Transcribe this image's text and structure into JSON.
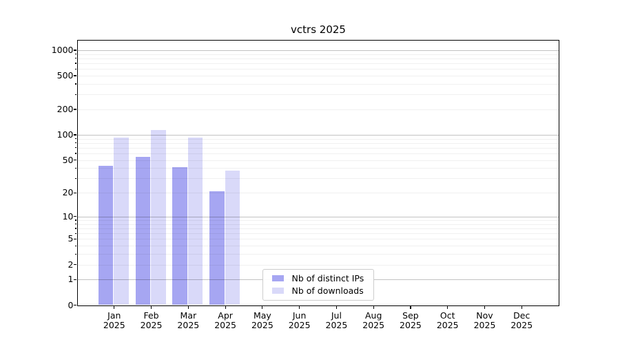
{
  "chart_data": {
    "type": "bar",
    "title": "vctrs 2025",
    "x_categories": [
      "Jan",
      "Feb",
      "Mar",
      "Apr",
      "May",
      "Jun",
      "Jul",
      "Aug",
      "Sep",
      "Oct",
      "Nov",
      "Dec"
    ],
    "x_year": "2025",
    "series": [
      {
        "name": "Nb of distinct IPs",
        "color": "#a6a6f2",
        "values": [
          43,
          55,
          41,
          21,
          null,
          null,
          null,
          null,
          null,
          null,
          null,
          null
        ]
      },
      {
        "name": "Nb of downloads",
        "color": "#d9d9f9",
        "values": [
          92,
          113,
          93,
          37,
          null,
          null,
          null,
          null,
          null,
          null,
          null,
          null
        ]
      }
    ],
    "y_scale": "log1p",
    "ylim": [
      0,
      1300
    ],
    "y_tick_labels": [
      "1000",
      "500",
      "200",
      "100",
      "50",
      "20",
      "10",
      "5",
      "2",
      "1",
      "0"
    ],
    "y_tick_values": [
      1000,
      500,
      200,
      100,
      50,
      20,
      10,
      5,
      2,
      1,
      0
    ],
    "y_major_grid_values": [
      1,
      10,
      100,
      1000
    ],
    "y_minor_grid_values": [
      2,
      3,
      4,
      5,
      6,
      7,
      8,
      9,
      20,
      30,
      40,
      50,
      60,
      70,
      80,
      90,
      200,
      300,
      400,
      500,
      600,
      700,
      800,
      900
    ],
    "grid": true,
    "legend": {
      "position": "inside-bottom-center",
      "entries": [
        "Nb of distinct IPs",
        "Nb of downloads"
      ]
    },
    "colors": {
      "axis": "#000000",
      "grid_major": "#c4c4c4",
      "grid_minor": "#efefef",
      "legend_border": "#cccccc"
    }
  }
}
